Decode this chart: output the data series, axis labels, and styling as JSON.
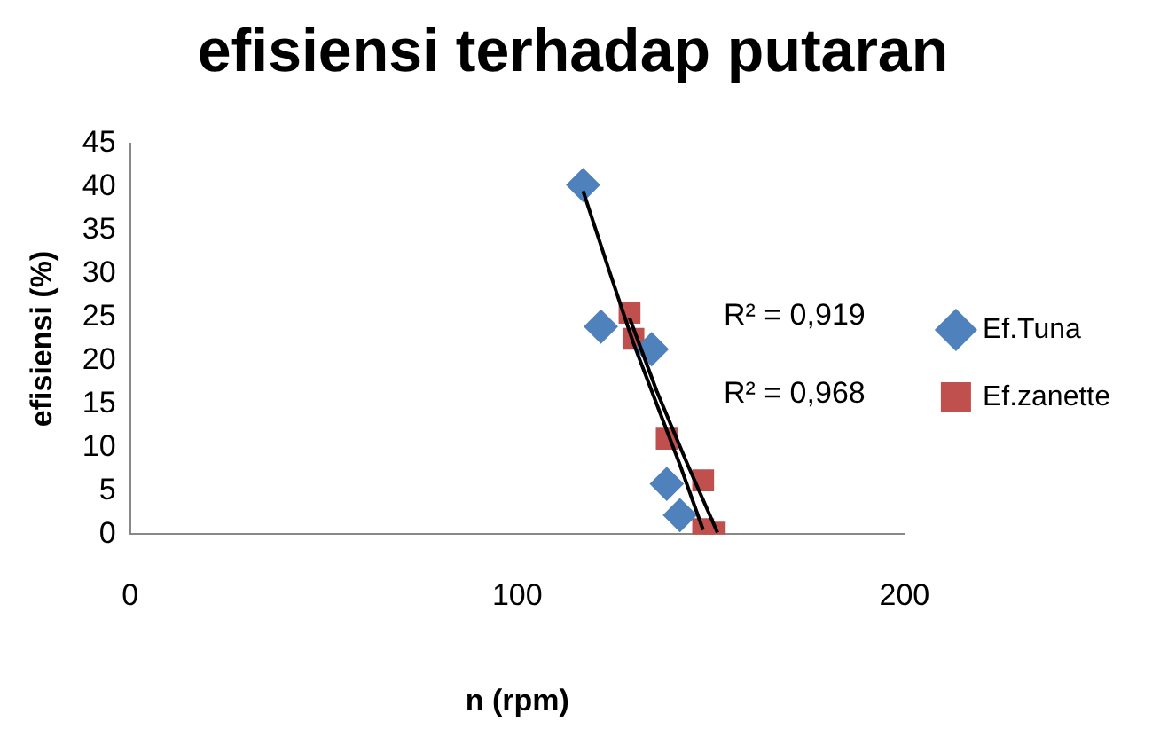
{
  "chart_data": {
    "type": "scatter",
    "title": "efisiensi terhadap putaran",
    "xlabel": "n (rpm)",
    "ylabel": "efisiensi (%)",
    "xlim": [
      0,
      200
    ],
    "xticks": [
      0,
      100,
      200
    ],
    "ylim": [
      0,
      45
    ],
    "yticks": [
      0,
      5,
      10,
      15,
      20,
      25,
      30,
      35,
      40,
      45
    ],
    "grid": false,
    "legend": "right",
    "series": [
      {
        "name": "Ef.Tuna",
        "color": "#4f81bd",
        "marker": "diamond",
        "x": [
          117,
          121.6,
          134.7,
          138.6,
          142
        ],
        "values": [
          40.2,
          23.9,
          21.3,
          5.8,
          2.2
        ]
      },
      {
        "name": "Ef.zanette",
        "color": "#c0504d",
        "marker": "square",
        "x": [
          129,
          130,
          138.6,
          148,
          148,
          151
        ],
        "values": [
          25.5,
          22.5,
          11,
          6.2,
          0.6,
          0.2
        ]
      },
      {
        "type": "line",
        "color": "#000000",
        "marker": "none",
        "x": [
          117,
          124,
          130,
          136,
          142,
          148
        ],
        "values": [
          39.5,
          30,
          22,
          15,
          8,
          0.5
        ]
      },
      {
        "type": "line",
        "color": "#000000",
        "marker": "none",
        "x": [
          129,
          136,
          144,
          151.7
        ],
        "values": [
          24.9,
          16.5,
          8,
          0.2
        ]
      }
    ],
    "annotations": [
      "R² = 0,919",
      "R² = 0,968"
    ]
  }
}
